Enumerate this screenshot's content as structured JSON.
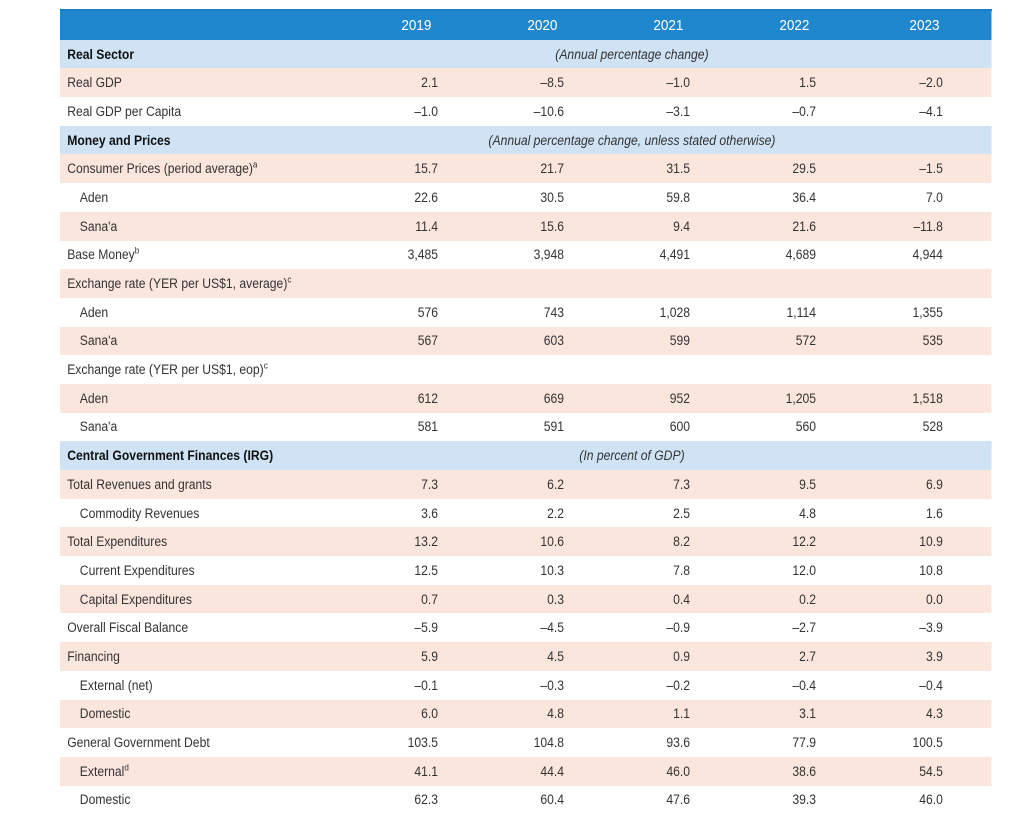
{
  "years": [
    "2019",
    "2020",
    "2021",
    "2022",
    "2023"
  ],
  "rows": [
    {
      "type": "section",
      "label": "Real Sector",
      "note": "(Annual percentage change)"
    },
    {
      "type": "data",
      "indent": false,
      "label": "Real GDP",
      "values": [
        "2.1",
        "–8.5",
        "–1.0",
        "1.5",
        "–2.0"
      ]
    },
    {
      "type": "data",
      "indent": false,
      "label": "Real GDP per Capita",
      "values": [
        "–1.0",
        "–10.6",
        "–3.1",
        "–0.7",
        "–4.1"
      ]
    },
    {
      "type": "section",
      "label": "Money and Prices",
      "note": "(Annual percentage change, unless stated otherwise)"
    },
    {
      "type": "data",
      "indent": false,
      "label": "Consumer Prices (period average)",
      "sup": "a",
      "values": [
        "15.7",
        "21.7",
        "31.5",
        "29.5",
        "–1.5"
      ]
    },
    {
      "type": "data",
      "indent": true,
      "label": "Aden",
      "values": [
        "22.6",
        "30.5",
        "59.8",
        "36.4",
        "7.0"
      ]
    },
    {
      "type": "data",
      "indent": true,
      "label": "Sana'a",
      "values": [
        "11.4",
        "15.6",
        "9.4",
        "21.6",
        "–11.8"
      ]
    },
    {
      "type": "data",
      "indent": false,
      "label": "Base Money",
      "sup": "b",
      "values": [
        "3,485",
        "3,948",
        "4,491",
        "4,689",
        "4,944"
      ]
    },
    {
      "type": "data",
      "indent": false,
      "label": "Exchange rate (YER per US$1, average)",
      "sup": "c",
      "values": [
        "",
        "",
        "",
        "",
        ""
      ]
    },
    {
      "type": "data",
      "indent": true,
      "label": "Aden",
      "values": [
        "576",
        "743",
        "1,028",
        "1,114",
        "1,355"
      ]
    },
    {
      "type": "data",
      "indent": true,
      "label": "Sana'a",
      "values": [
        "567",
        "603",
        "599",
        "572",
        "535"
      ]
    },
    {
      "type": "data",
      "indent": false,
      "label": "Exchange rate (YER per US$1, eop)",
      "sup": "c",
      "values": [
        "",
        "",
        "",
        "",
        ""
      ]
    },
    {
      "type": "data",
      "indent": true,
      "label": "Aden",
      "values": [
        "612",
        "669",
        "952",
        "1,205",
        "1,518"
      ]
    },
    {
      "type": "data",
      "indent": true,
      "label": "Sana'a",
      "values": [
        "581",
        "591",
        "600",
        "560",
        "528"
      ]
    },
    {
      "type": "section",
      "label": "Central Government Finances (IRG)",
      "note": "(In percent of GDP)"
    },
    {
      "type": "data",
      "indent": false,
      "label": "Total Revenues and grants",
      "values": [
        "7.3",
        "6.2",
        "7.3",
        "9.5",
        "6.9"
      ]
    },
    {
      "type": "data",
      "indent": true,
      "label": "Commodity Revenues",
      "values": [
        "3.6",
        "2.2",
        "2.5",
        "4.8",
        "1.6"
      ]
    },
    {
      "type": "data",
      "indent": false,
      "label": "Total Expenditures",
      "values": [
        "13.2",
        "10.6",
        "8.2",
        "12.2",
        "10.9"
      ]
    },
    {
      "type": "data",
      "indent": true,
      "label": "Current Expenditures",
      "values": [
        "12.5",
        "10.3",
        "7.8",
        "12.0",
        "10.8"
      ]
    },
    {
      "type": "data",
      "indent": true,
      "label": "Capital Expenditures",
      "values": [
        "0.7",
        "0.3",
        "0.4",
        "0.2",
        "0.0"
      ]
    },
    {
      "type": "data",
      "indent": false,
      "label": "Overall Fiscal Balance",
      "values": [
        "–5.9",
        "–4.5",
        "–0.9",
        "–2.7",
        "–3.9"
      ]
    },
    {
      "type": "data",
      "indent": false,
      "label": "Financing",
      "values": [
        "5.9",
        "4.5",
        "0.9",
        "2.7",
        "3.9"
      ]
    },
    {
      "type": "data",
      "indent": true,
      "label": "External (net)",
      "values": [
        "–0.1",
        "–0.3",
        "–0.2",
        "–0.4",
        "–0.4"
      ]
    },
    {
      "type": "data",
      "indent": true,
      "label": "Domestic",
      "values": [
        "6.0",
        "4.8",
        "1.1",
        "3.1",
        "4.3"
      ]
    },
    {
      "type": "data",
      "indent": false,
      "label": "General Government Debt",
      "values": [
        "103.5",
        "104.8",
        "93.6",
        "77.9",
        "100.5"
      ]
    },
    {
      "type": "data",
      "indent": true,
      "label": "External",
      "sup": "d",
      "values": [
        "41.1",
        "44.4",
        "46.0",
        "38.6",
        "54.5"
      ]
    },
    {
      "type": "data",
      "indent": true,
      "label": "Domestic",
      "values": [
        "62.3",
        "60.4",
        "47.6",
        "39.3",
        "46.0"
      ]
    }
  ],
  "colors": {
    "header": "#1f87cd",
    "section": "#cfe3f4",
    "stripe": "#fbe6de",
    "rule": "#1a7dc7"
  }
}
